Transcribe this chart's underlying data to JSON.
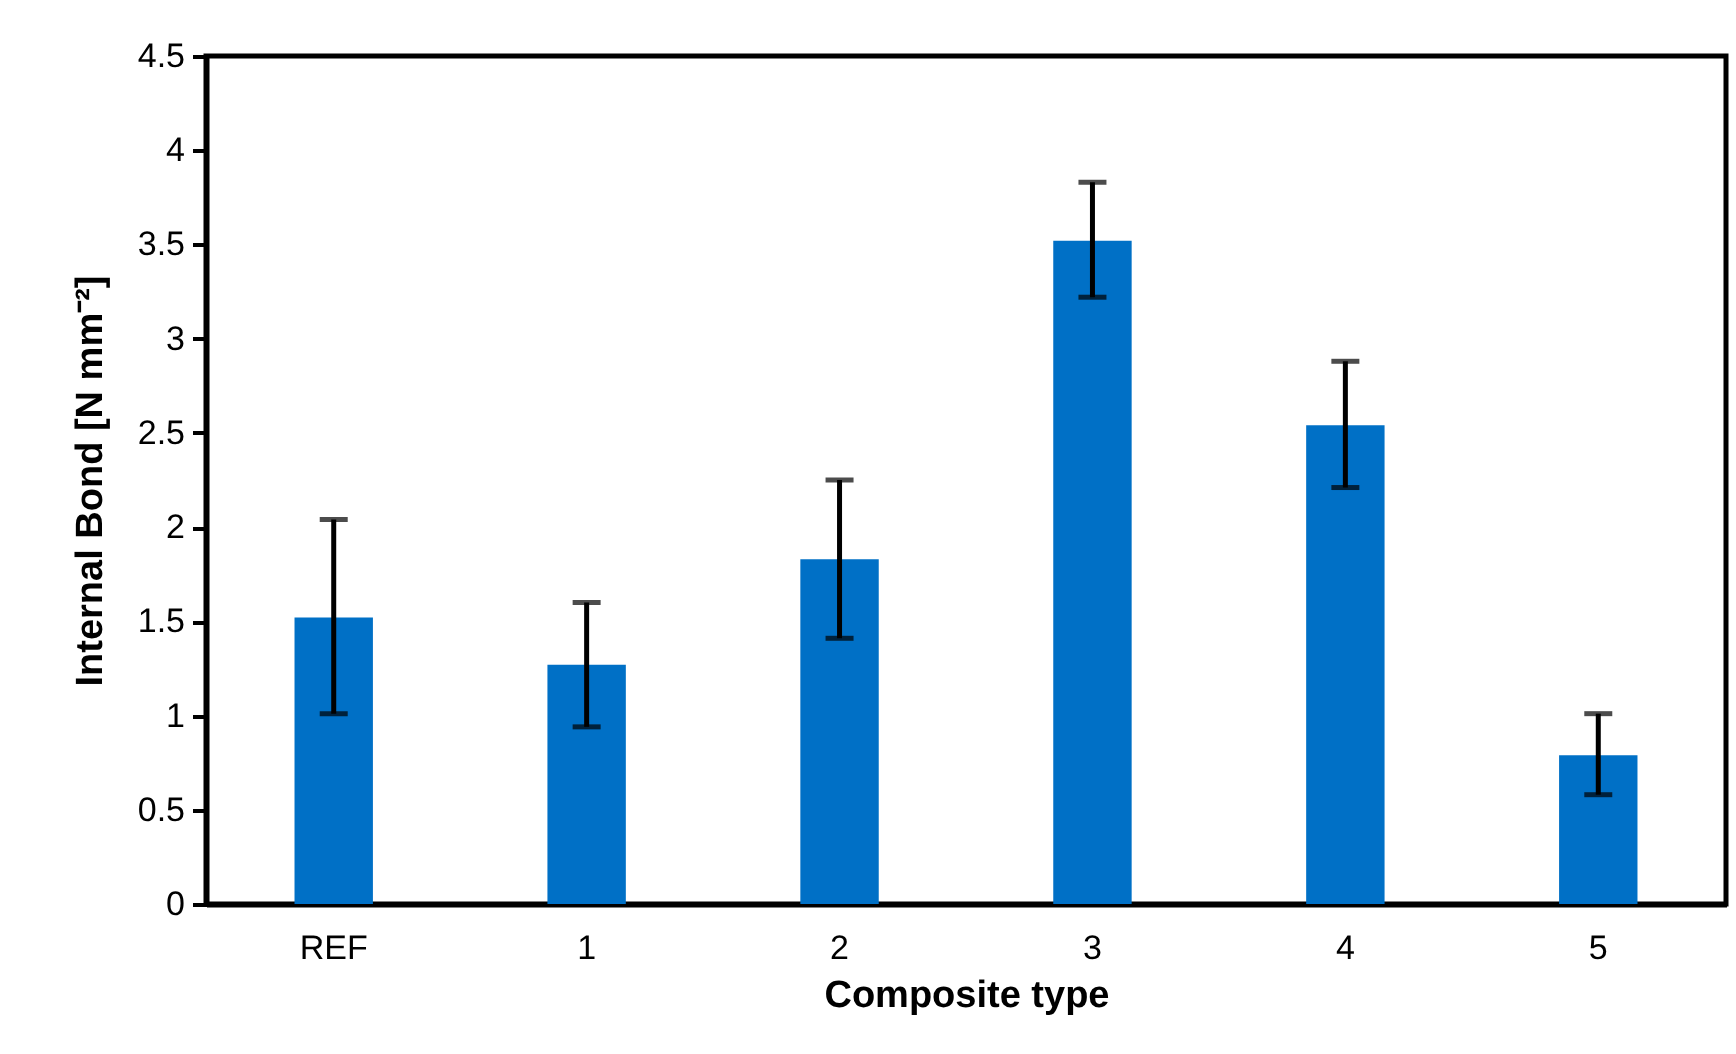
{
  "chart_data": {
    "type": "bar",
    "xlabel": "Composite type",
    "ylabel": "Internal Bond [N mm⁻²]",
    "categories": [
      "REF",
      "1",
      "2",
      "3",
      "4",
      "5"
    ],
    "values": [
      1.52,
      1.27,
      1.83,
      3.52,
      2.54,
      0.79
    ],
    "errors": [
      [
        1.01,
        2.04
      ],
      [
        0.94,
        1.6
      ],
      [
        1.41,
        2.25
      ],
      [
        3.22,
        3.83
      ],
      [
        2.21,
        2.88
      ],
      [
        0.58,
        1.01
      ]
    ],
    "color": "#0070c6",
    "ylim": [
      0,
      4.5
    ],
    "yticks": [
      0,
      0.5,
      1,
      1.5,
      2,
      2.5,
      3,
      3.5,
      4,
      4.5
    ],
    "grid": false
  }
}
